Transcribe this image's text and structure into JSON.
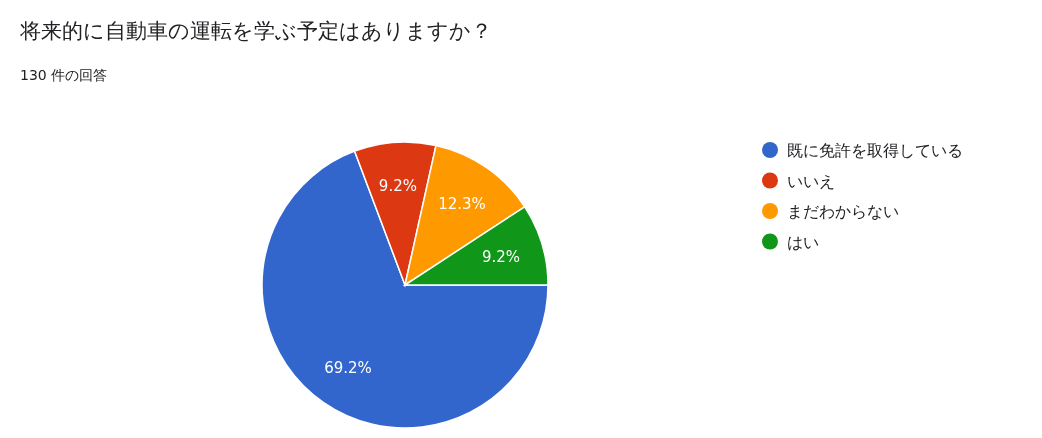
{
  "chart_data": {
    "type": "pie",
    "title": "将来的に自動車の運転を学ぶ予定はありますか？",
    "subtitle": "130 件の回答",
    "categories": [
      "既に免許を取得している",
      "いいえ",
      "まだわからない",
      "はい"
    ],
    "values": [
      69.2,
      9.2,
      12.3,
      9.2
    ],
    "colors": [
      "#3366cc",
      "#dc3912",
      "#ff9900",
      "#109618"
    ],
    "value_labels": [
      "69.2%",
      "9.2%",
      "12.3%",
      "9.2%"
    ],
    "legend": "right"
  }
}
